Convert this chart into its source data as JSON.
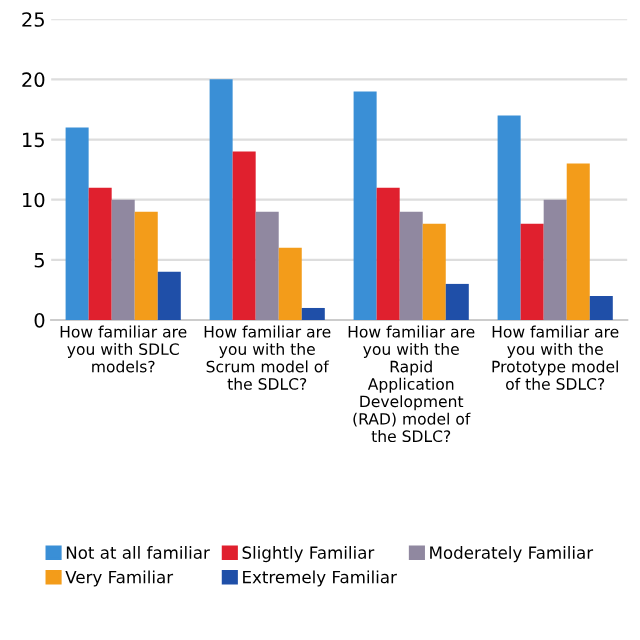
{
  "chart_data": {
    "type": "bar",
    "categories": [
      "How familiar are\nyou with SDLC\nmodels?",
      "How familiar are\nyou with the\nScrum model of\nthe SDLC?",
      "How familiar are\nyou with the\nRapid\nApplication\nDevelopment\n(RAD) model of\nthe SDLC?",
      "How familiar are\nyou with the\nPrototype model\nof the SDLC?"
    ],
    "series": [
      {
        "name": "Not at all familiar",
        "color": "#3a8fd6",
        "values": [
          16,
          20,
          19,
          17
        ]
      },
      {
        "name": "Slightly Familiar",
        "color": "#e0202e",
        "values": [
          11,
          14,
          11,
          8
        ]
      },
      {
        "name": "Moderately Familiar",
        "color": "#9088a0",
        "values": [
          10,
          9,
          9,
          10
        ]
      },
      {
        "name": "Very Familiar",
        "color": "#f39c1a",
        "values": [
          9,
          6,
          8,
          13
        ]
      },
      {
        "name": "Extremely Familiar",
        "color": "#1f4fa8",
        "values": [
          4,
          1,
          3,
          2
        ]
      }
    ],
    "ylim": [
      0,
      25
    ],
    "yticks": [
      0,
      5,
      10,
      15,
      20,
      25
    ],
    "grid": "y",
    "legend": "bottom"
  }
}
